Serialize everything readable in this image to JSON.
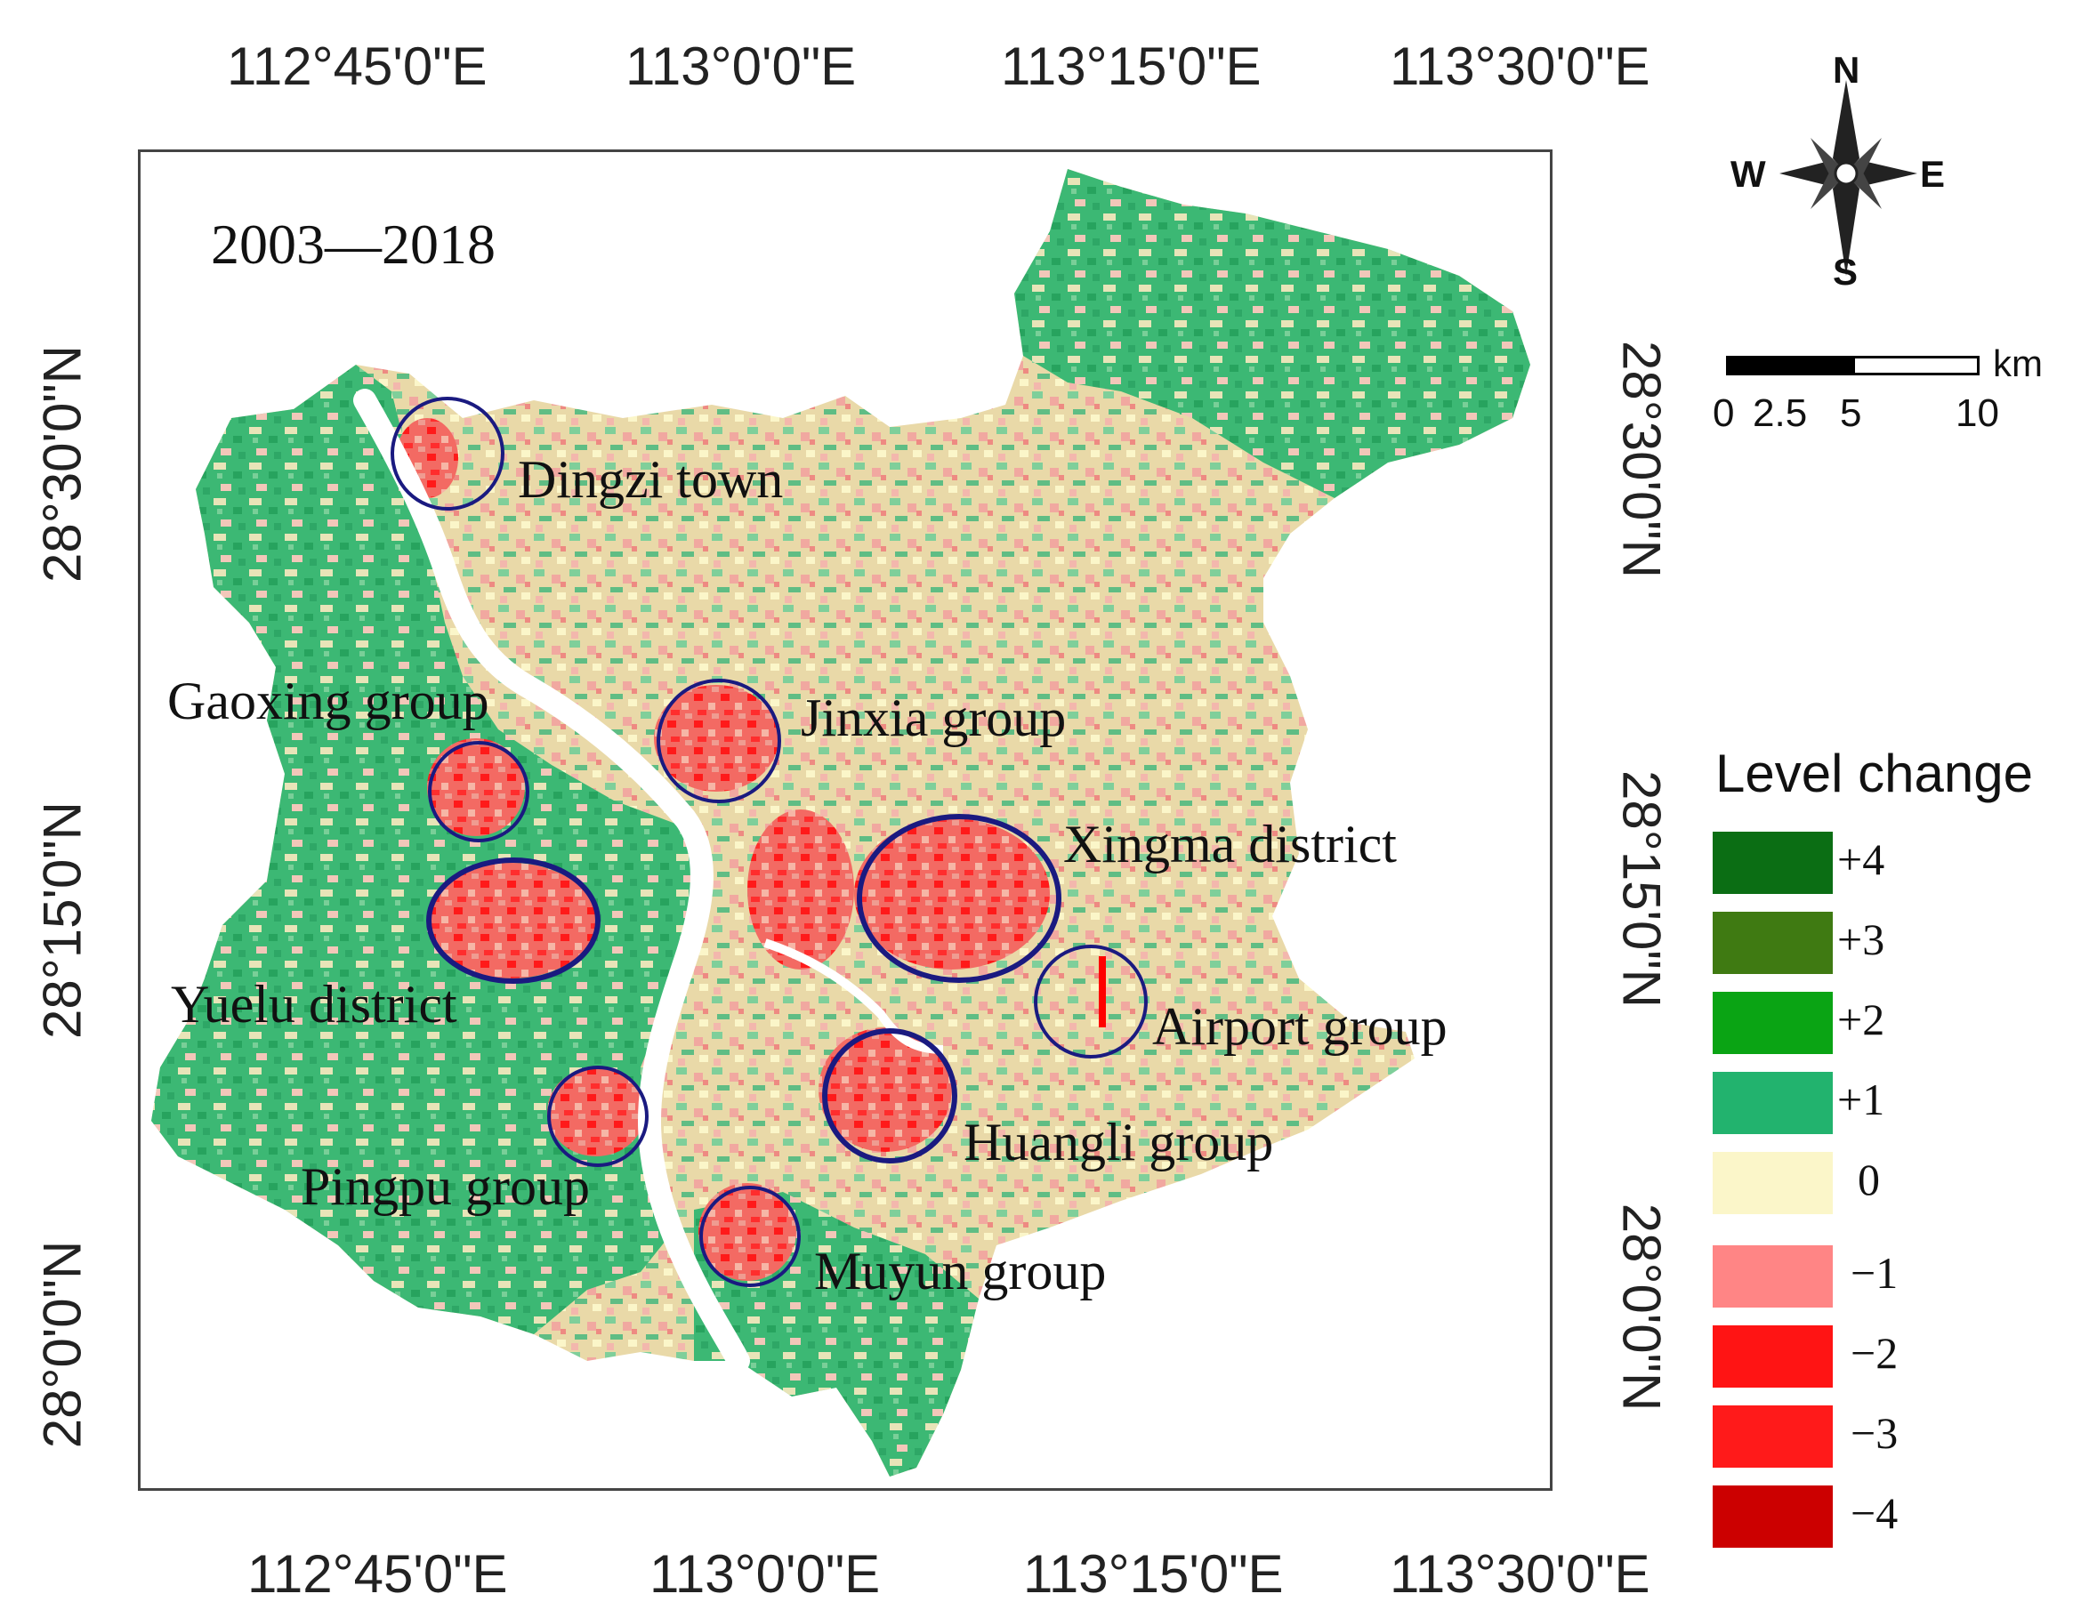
{
  "map": {
    "period_label": "2003—2018",
    "top_lon_labels": [
      "112°45'0\"E",
      "113°0'0\"E",
      "113°15'0\"E",
      "113°30'0\"E"
    ],
    "bottom_lon_labels": [
      "112°45'0\"E",
      "113°0'0\"E",
      "113°15'0\"E",
      "113°30'0\"E"
    ],
    "left_lat_labels": [
      "28°30'0\"N",
      "28°15'0\"N",
      "28°0'0\"N"
    ],
    "right_lat_labels": [
      "28°30'0\"N",
      "28°15'0\"N",
      "28°0'0\"N"
    ],
    "areas": [
      {
        "id": "dingzi",
        "label": "Dingzi town"
      },
      {
        "id": "gaoxing",
        "label": "Gaoxing group"
      },
      {
        "id": "jinxia",
        "label": "Jinxia group"
      },
      {
        "id": "xingma",
        "label": "Xingma district"
      },
      {
        "id": "yuelu",
        "label": "Yuelu district"
      },
      {
        "id": "airport",
        "label": "Airport group"
      },
      {
        "id": "huangli",
        "label": "Huangli  group"
      },
      {
        "id": "pingpu",
        "label": "Pingpu group"
      },
      {
        "id": "muyun",
        "label": "Muyun group"
      }
    ],
    "circle_color": "#1a1a80"
  },
  "compass": {
    "n": "N",
    "s": "S",
    "e": "E",
    "w": "W"
  },
  "scale_bar": {
    "unit": "km",
    "ticks": [
      "0",
      "2.5",
      "5",
      "10"
    ]
  },
  "legend": {
    "title": "Level change",
    "items": [
      {
        "label": "+4",
        "color": "#0b6e14"
      },
      {
        "label": "+3",
        "color": "#3f7a12"
      },
      {
        "label": "+2",
        "color": "#0aa414"
      },
      {
        "label": "+1",
        "color": "#22b36e"
      },
      {
        "label": "0",
        "color": "#fbf6c9"
      },
      {
        "label": "−1",
        "color": "#ff8585"
      },
      {
        "label": "−2",
        "color": "#ff1414"
      },
      {
        "label": "−3",
        "color": "#ff1a1a"
      },
      {
        "label": "−4",
        "color": "#cc0000"
      }
    ]
  }
}
